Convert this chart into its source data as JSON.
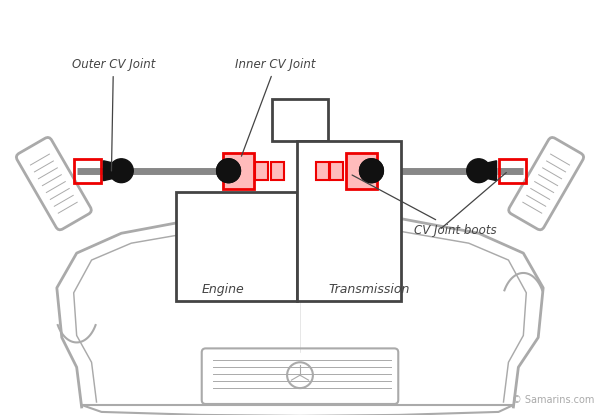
{
  "bg_color": "#ffffff",
  "line_color": "#aaaaaa",
  "dark_color": "#444444",
  "red_color": "#ee0000",
  "black_color": "#111111",
  "gray_axle": "#888888",
  "copyright": "© Samarins.com",
  "labels": {
    "outer_cv": "Outer CV Joint",
    "inner_cv": "Inner CV Joint",
    "cv_boots": "CV Joint boots",
    "engine": "Engine",
    "transmission": "Transmission"
  }
}
